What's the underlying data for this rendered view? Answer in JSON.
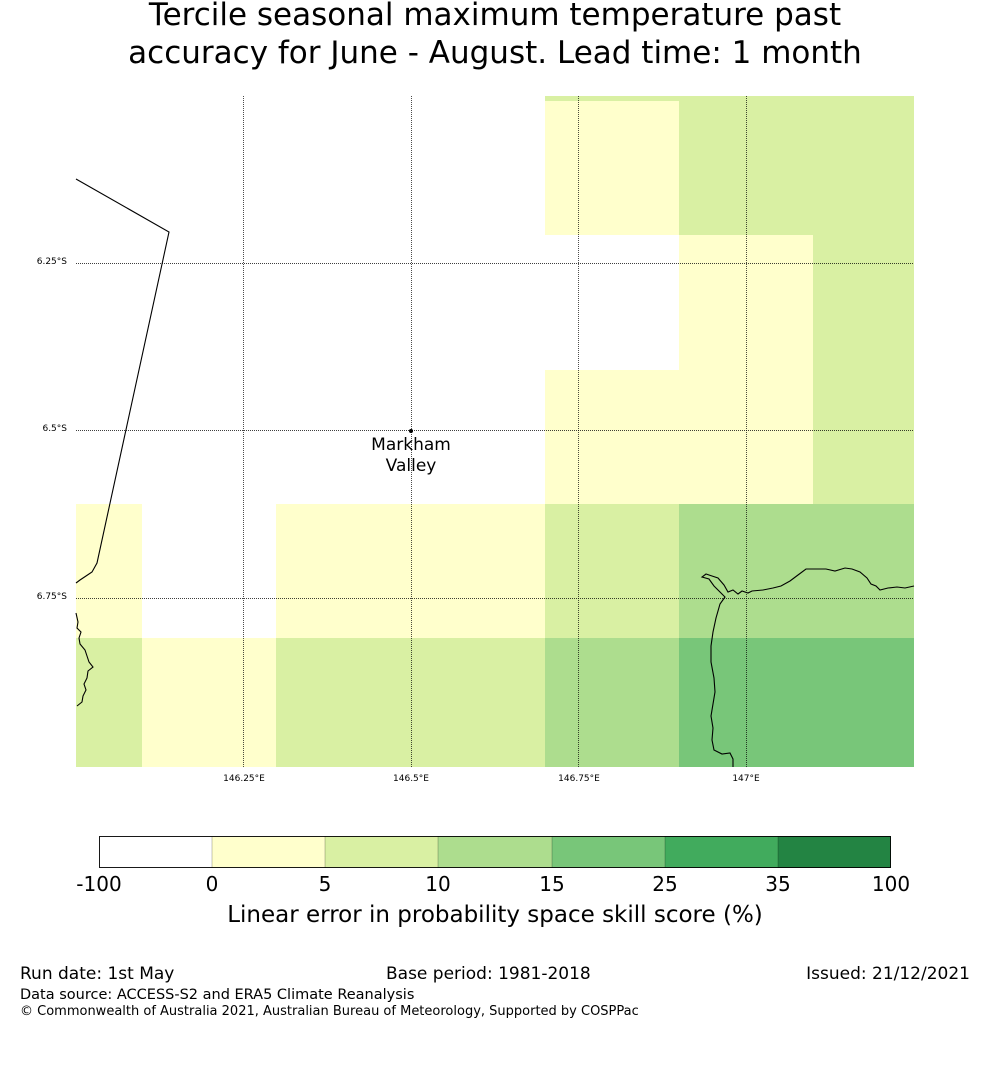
{
  "title": {
    "line1": "Tercile seasonal maximum temperature past",
    "line2": "accuracy for June - August. Lead time: 1 month"
  },
  "map": {
    "lat_labels": [
      "6.25°S",
      "6.5°S",
      "6.75°S"
    ],
    "lon_labels": [
      "146.25°E",
      "146.5°E",
      "146.75°E",
      "147°E"
    ],
    "place": {
      "line1": "Markham",
      "line2": "Valley"
    }
  },
  "colorbar": {
    "label": "Linear error in probability space skill score (%)",
    "ticks": [
      "-100",
      "0",
      "5",
      "10",
      "15",
      "25",
      "35",
      "100"
    ],
    "colors": [
      "#ffffff",
      "#ffffcc",
      "#d9f0a3",
      "#addd8e",
      "#78c679",
      "#41ab5d",
      "#238443"
    ]
  },
  "footer": {
    "run_date": "Run date: 1st May",
    "base_period": "Base period: 1981-2018",
    "issued": "Issued: 21/12/2021",
    "data_source": "Data source: ACCESS-S2 and ERA5 Climate Reanalysis",
    "copyright": "© Commonwealth of Australia 2021, Australian Bureau of Meteorology, Supported by COSPPac"
  }
}
